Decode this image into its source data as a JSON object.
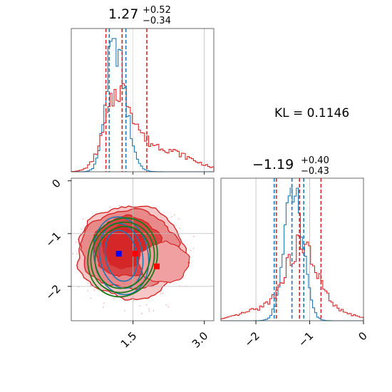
{
  "chart_data": [
    {
      "type": "histogram",
      "panel": "top-left",
      "title": {
        "value": "1.27",
        "plus": "+0.52",
        "minus": "−0.34"
      },
      "xlim": [
        0.2,
        3.2
      ],
      "series": [
        {
          "color": "#1f77b4",
          "quantiles": [
            1.0,
            1.27,
            1.35
          ],
          "peak_x": 1.1
        },
        {
          "color": "#d62728",
          "quantiles": [
            0.93,
            1.27,
            1.79
          ],
          "peak_x": 1.2
        }
      ]
    },
    {
      "type": "contour",
      "panel": "bottom-left",
      "xlim": [
        0.2,
        3.2
      ],
      "ylim": [
        -2.65,
        0.05
      ],
      "x_ticks": [
        "1.5",
        "3.0"
      ],
      "y_ticks": [
        "0",
        "−1",
        "−2"
      ],
      "markers": [
        {
          "color": "#0000ff",
          "x": 1.2,
          "y": -1.38
        },
        {
          "color": "#ff0000",
          "x": 1.55,
          "y": -1.38
        },
        {
          "color": "#ff0000",
          "x": 2.0,
          "y": -1.62
        }
      ]
    },
    {
      "type": "histogram",
      "panel": "bottom-right",
      "title": {
        "value": "−1.19",
        "plus": "+0.40",
        "minus": "−0.43"
      },
      "xlim": [
        -2.65,
        0.0
      ],
      "x_ticks": [
        "−2",
        "−1",
        "0"
      ],
      "series": [
        {
          "color": "#1f77b4",
          "quantiles": [
            -1.66,
            -1.33,
            -1.11
          ],
          "peak_x": -1.3
        },
        {
          "color": "#d62728",
          "quantiles": [
            -1.62,
            -1.19,
            -0.79
          ],
          "peak_x": -1.1
        }
      ]
    }
  ],
  "annotation": "KL = 0.1146",
  "colors": {
    "blue": "#1f77b4",
    "red": "#d62728",
    "green": "#1a7a1a"
  }
}
